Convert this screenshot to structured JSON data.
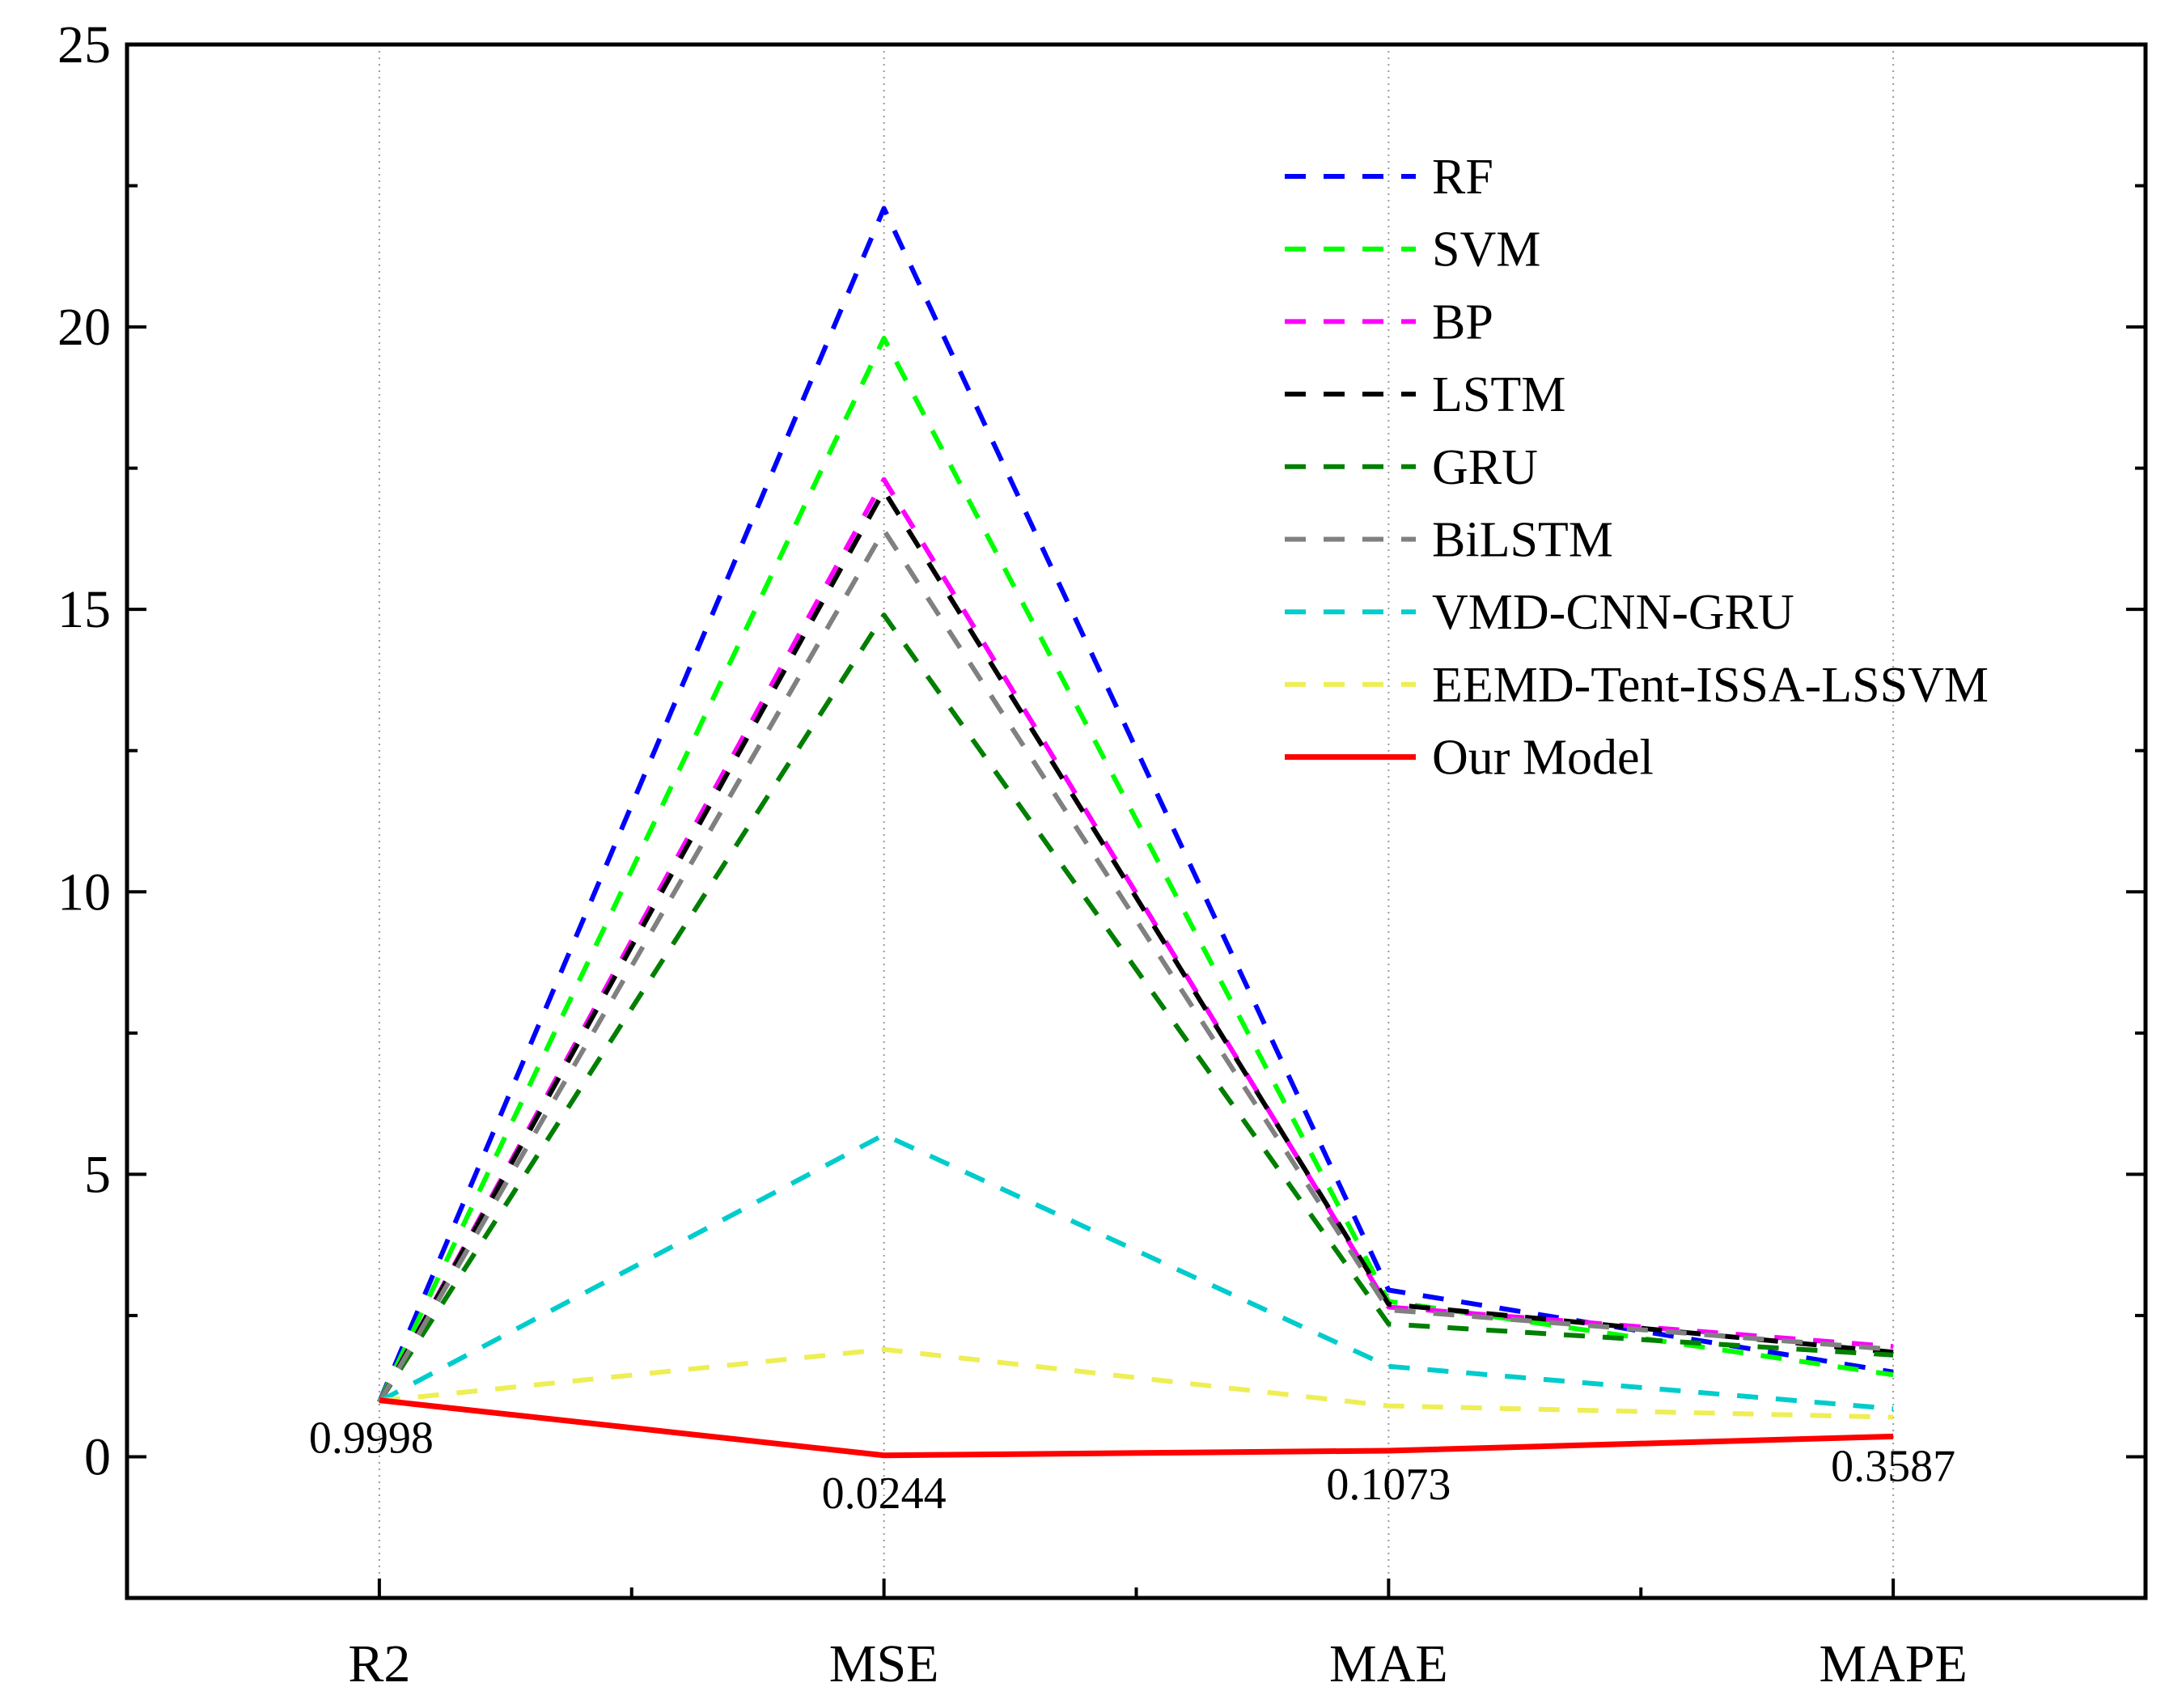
{
  "chart_data": {
    "type": "line",
    "title": "",
    "xlabel": "",
    "ylabel": "",
    "categories": [
      "R2",
      "MSE",
      "MAE",
      "MAPE"
    ],
    "ylim": [
      -2.5,
      25
    ],
    "yticks": [
      0,
      5,
      10,
      15,
      20,
      25
    ],
    "grid": "vertical dotted at categories",
    "legend_position": "top-right",
    "series": [
      {
        "name": "RF",
        "color": "#0000ff",
        "dashed": true,
        "values": [
          0.97,
          22.1,
          2.95,
          1.5
        ]
      },
      {
        "name": "SVM",
        "color": "#00ff00",
        "dashed": true,
        "values": [
          0.97,
          19.8,
          2.75,
          1.45
        ]
      },
      {
        "name": "BP",
        "color": "#ff00ff",
        "dashed": true,
        "values": [
          0.97,
          17.3,
          2.65,
          1.95
        ]
      },
      {
        "name": "LSTM",
        "color": "#000000",
        "dashed": true,
        "values": [
          0.97,
          17.1,
          2.7,
          1.85
        ]
      },
      {
        "name": "GRU",
        "color": "#007f00",
        "dashed": true,
        "values": [
          0.97,
          14.9,
          2.35,
          1.8
        ]
      },
      {
        "name": "BiLSTM",
        "color": "#808080",
        "dashed": true,
        "values": [
          0.97,
          16.4,
          2.6,
          1.9
        ]
      },
      {
        "name": "VMD-CNN-GRU",
        "color": "#00cccc",
        "dashed": true,
        "values": [
          0.98,
          5.7,
          1.6,
          0.85
        ]
      },
      {
        "name": "EEMD-Tent-ISSA-LSSVM",
        "color": "#eeee55",
        "dashed": true,
        "values": [
          0.99,
          1.9,
          0.9,
          0.7
        ]
      },
      {
        "name": "Our Model",
        "color": "#ff0000",
        "dashed": false,
        "values": [
          0.9998,
          0.0244,
          0.1073,
          0.3587
        ]
      }
    ],
    "annotations": [
      {
        "text": "0.9998",
        "category": "R2",
        "value": 0.9998
      },
      {
        "text": "0.0244",
        "category": "MSE",
        "value": 0.0244
      },
      {
        "text": "0.1073",
        "category": "MAE",
        "value": 0.1073
      },
      {
        "text": "0.3587",
        "category": "MAPE",
        "value": 0.3587
      }
    ]
  }
}
